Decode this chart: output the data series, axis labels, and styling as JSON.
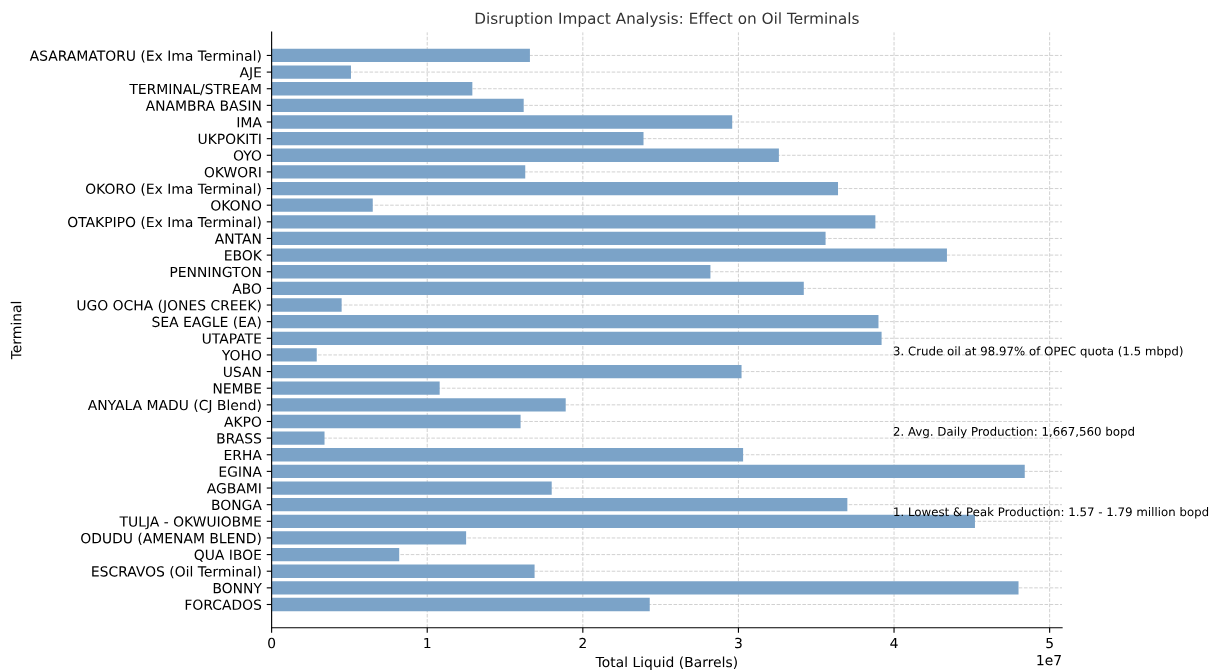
{
  "chart_data": {
    "type": "bar",
    "orientation": "horizontal",
    "title": "Disruption Impact Analysis: Effect on Oil Terminals",
    "xlabel": "Total Liquid (Barrels)",
    "ylabel": "Terminal",
    "categories": [
      "ASARAMATORU (Ex Ima Terminal)",
      "AJE",
      "TERMINAL/STREAM",
      "ANAMBRA BASIN",
      "IMA",
      "UKPOKITI",
      "OYO",
      "OKWORI",
      "OKORO (Ex Ima Terminal)",
      "OKONO",
      "OTAKPIPO (Ex Ima Terminal)",
      "ANTAN",
      "EBOK",
      "PENNINGTON",
      "ABO",
      "UGO OCHA (JONES CREEK)",
      "SEA EAGLE (EA)",
      "UTAPATE",
      "YOHO",
      "USAN",
      "NEMBE",
      "ANYALA MADU (CJ Blend)",
      "AKPO",
      "BRASS",
      "ERHA",
      "EGINA",
      "AGBAMI",
      "BONGA",
      "TULJA - OKWUIOBME",
      "ODUDU (AMENAM BLEND)",
      "QUA IBOE",
      "ESCRAVOS (Oil Terminal)",
      "BONNY",
      "FORCADOS"
    ],
    "values": [
      1.66,
      0.51,
      1.29,
      1.62,
      2.96,
      2.39,
      3.26,
      1.63,
      3.64,
      0.65,
      3.88,
      3.56,
      4.34,
      2.82,
      3.42,
      0.45,
      3.9,
      3.92,
      0.29,
      3.02,
      1.08,
      1.89,
      1.6,
      0.34,
      3.03,
      4.84,
      1.8,
      3.7,
      4.52,
      1.25,
      0.82,
      1.69,
      4.8,
      2.43
    ],
    "color": "#7ba3c8",
    "xlim": [
      0,
      5.08
    ],
    "xticks": [
      0,
      1,
      2,
      3,
      4,
      5
    ],
    "grid": true,
    "annotations": [
      "1. Lowest & Peak Production: 1.57 - 1.79 million bopd",
      "2. Avg. Daily Production: 1,667,560 bopd",
      "3. Crude oil at 98.97% of OPEC quota (1.5 mbpd)",
      "1e7"
    ]
  }
}
